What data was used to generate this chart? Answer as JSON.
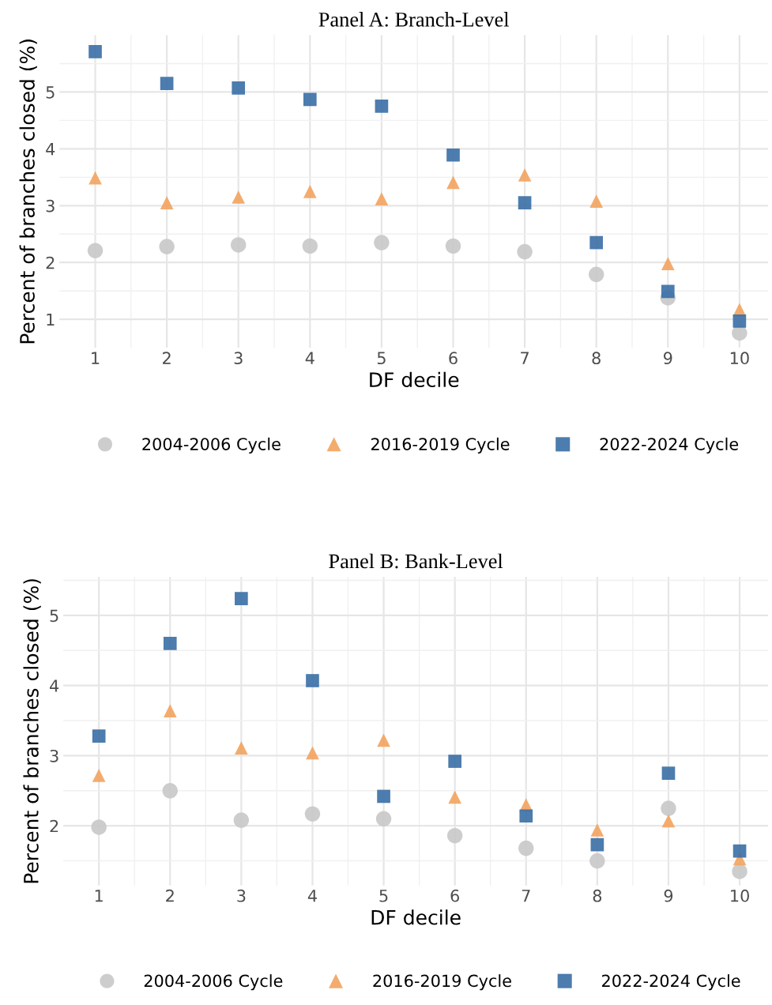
{
  "chart_data": [
    {
      "type": "scatter",
      "title": "Panel A: Branch-Level",
      "xlabel": "DF decile",
      "ylabel": "Percent of branches closed (%)",
      "x": [
        1,
        2,
        3,
        4,
        5,
        6,
        7,
        8,
        9,
        10
      ],
      "xlim": [
        0.5,
        10.4
      ],
      "xticks": [
        1,
        2,
        3,
        4,
        5,
        6,
        7,
        8,
        9,
        10
      ],
      "ylim": [
        0.5,
        6.0
      ],
      "yticks": [
        1,
        2,
        3,
        4,
        5
      ],
      "grid": true,
      "legend": "bottom",
      "series": [
        {
          "name": "2004-2006 Cycle",
          "color": "#c8c8c8",
          "marker": "circle",
          "values": [
            2.21,
            2.28,
            2.31,
            2.29,
            2.35,
            2.29,
            2.19,
            1.79,
            1.38,
            0.76
          ]
        },
        {
          "name": "2016-2019 Cycle",
          "color": "#f2a35e",
          "marker": "triangle",
          "values": [
            3.49,
            3.05,
            3.15,
            3.25,
            3.12,
            3.41,
            3.54,
            3.08,
            1.98,
            1.17
          ]
        },
        {
          "name": "2022-2024 Cycle",
          "color": "#3a6ea5",
          "marker": "square",
          "values": [
            5.71,
            5.15,
            5.07,
            4.87,
            4.75,
            3.89,
            3.05,
            2.35,
            1.49,
            0.97
          ]
        }
      ]
    },
    {
      "type": "scatter",
      "title": "Panel B: Bank-Level",
      "xlabel": "DF decile",
      "ylabel": "Percent of branches closed (%)",
      "x": [
        1,
        2,
        3,
        4,
        5,
        6,
        7,
        8,
        9,
        10
      ],
      "xlim": [
        0.5,
        10.4
      ],
      "xticks": [
        1,
        2,
        3,
        4,
        5,
        6,
        7,
        8,
        9,
        10
      ],
      "ylim": [
        1.15,
        5.55
      ],
      "yticks": [
        2,
        3,
        4,
        5
      ],
      "grid": true,
      "legend": "bottom",
      "series": [
        {
          "name": "2004-2006 Cycle",
          "color": "#c8c8c8",
          "marker": "circle",
          "values": [
            1.98,
            2.5,
            2.08,
            2.17,
            2.1,
            1.86,
            1.68,
            1.5,
            2.25,
            1.35
          ]
        },
        {
          "name": "2016-2019 Cycle",
          "color": "#f2a35e",
          "marker": "triangle",
          "values": [
            2.72,
            3.64,
            3.11,
            3.04,
            3.22,
            2.41,
            2.3,
            1.94,
            2.07,
            1.53
          ]
        },
        {
          "name": "2022-2024 Cycle",
          "color": "#3a6ea5",
          "marker": "square",
          "values": [
            3.28,
            4.6,
            5.24,
            4.07,
            2.42,
            2.92,
            2.14,
            1.73,
            2.75,
            1.64
          ]
        }
      ]
    }
  ]
}
